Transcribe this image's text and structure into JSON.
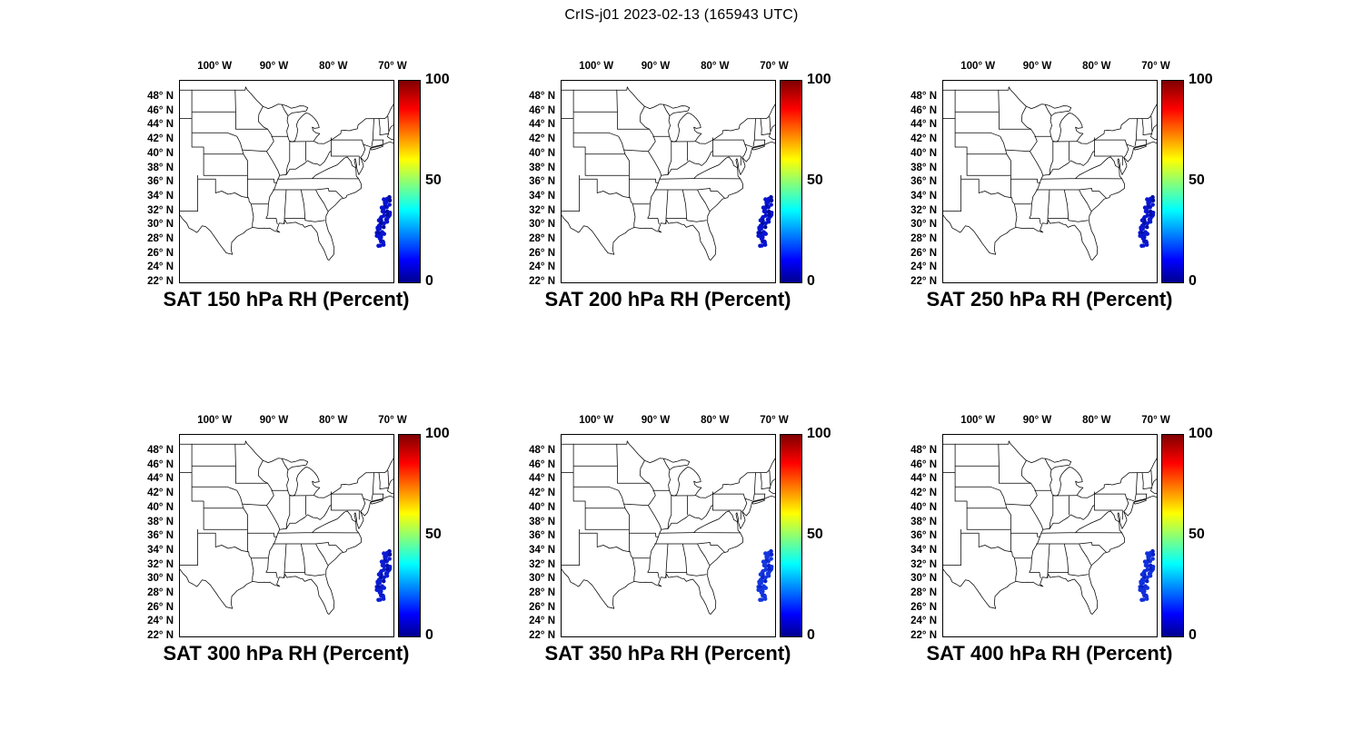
{
  "figure": {
    "title": "CrIS-j01 2023-02-13 (165943 UTC)",
    "background_color": "#ffffff"
  },
  "axes": {
    "lon_ticks": [
      "100° W",
      "90° W",
      "80° W",
      "70° W"
    ],
    "lat_ticks": [
      "48° N",
      "46° N",
      "44° N",
      "42° N",
      "40° N",
      "38° N",
      "36° N",
      "34° N",
      "32° N",
      "30° N",
      "28° N",
      "26° N",
      "24° N",
      "22° N"
    ]
  },
  "colorbar": {
    "ticks": [
      "100",
      "50",
      "0"
    ],
    "min": 0,
    "max": 100,
    "colormap": "jet"
  },
  "panels": [
    {
      "title": "SAT 150 hPa RH (Percent)",
      "pressure_hpa": 150,
      "swath_color": "#0713cf",
      "swath_color_alt": "#000d9e"
    },
    {
      "title": "SAT 200 hPa RH (Percent)",
      "pressure_hpa": 200,
      "swath_color": "#0713cf",
      "swath_color_alt": "#000d9e"
    },
    {
      "title": "SAT 250 hPa RH (Percent)",
      "pressure_hpa": 250,
      "swath_color": "#0a16d0",
      "swath_color_alt": "#000fa6"
    },
    {
      "title": "SAT 300 hPa RH (Percent)",
      "pressure_hpa": 300,
      "swath_color": "#0a1cd4",
      "swath_color_alt": "#0010a8"
    },
    {
      "title": "SAT 350 hPa RH (Percent)",
      "pressure_hpa": 350,
      "swath_color": "#1436e0",
      "swath_color_alt": "#0a23cc"
    },
    {
      "title": "SAT 400 hPa RH (Percent)",
      "pressure_hpa": 400,
      "swath_color": "#1130dc",
      "swath_color_alt": "#081fc6"
    }
  ],
  "chart_data": {
    "type": "scatter",
    "figure_title": "CrIS-j01 2023-02-13 (165943 UTC)",
    "description": "Six-panel map figure of satellite (CrIS-j01) retrieved relative humidity over the central/eastern United States; each panel shows the same observation swath off the US southeast Atlantic coast colored by RH at one pressure level.",
    "map_extent": {
      "lon_deg_w": [
        106,
        70
      ],
      "lat_deg_n": [
        22,
        50.3
      ],
      "features": "US state boundaries"
    },
    "lon_ticks_deg_w": [
      100,
      90,
      80,
      70
    ],
    "lat_ticks_deg_n": [
      48,
      46,
      44,
      42,
      40,
      38,
      36,
      34,
      32,
      30,
      28,
      26,
      24,
      22
    ],
    "colorbar": {
      "label": "RH (Percent)",
      "range": [
        0,
        100
      ],
      "ticks": [
        0,
        50,
        100
      ],
      "colormap": "jet",
      "position": "right"
    },
    "subplots": [
      {
        "title": "SAT 150 hPa RH (Percent)",
        "pressure_hpa": 150,
        "swath": {
          "lon_deg_w": [
            73.3,
            71.0
          ],
          "lat_deg_n": [
            27.3,
            34.0
          ],
          "approx_rh_percent": [
            0,
            12
          ]
        }
      },
      {
        "title": "SAT 200 hPa RH (Percent)",
        "pressure_hpa": 200,
        "swath": {
          "lon_deg_w": [
            73.3,
            71.0
          ],
          "lat_deg_n": [
            27.3,
            34.0
          ],
          "approx_rh_percent": [
            0,
            12
          ]
        }
      },
      {
        "title": "SAT 250 hPa RH (Percent)",
        "pressure_hpa": 250,
        "swath": {
          "lon_deg_w": [
            73.3,
            71.0
          ],
          "lat_deg_n": [
            27.3,
            34.0
          ],
          "approx_rh_percent": [
            0,
            12
          ]
        }
      },
      {
        "title": "SAT 300 hPa RH (Percent)",
        "pressure_hpa": 300,
        "swath": {
          "lon_deg_w": [
            73.3,
            71.0
          ],
          "lat_deg_n": [
            27.3,
            34.0
          ],
          "approx_rh_percent": [
            0,
            15
          ]
        }
      },
      {
        "title": "SAT 350 hPa RH (Percent)",
        "pressure_hpa": 350,
        "swath": {
          "lon_deg_w": [
            73.3,
            71.0
          ],
          "lat_deg_n": [
            27.3,
            34.0
          ],
          "approx_rh_percent": [
            5,
            20
          ]
        }
      },
      {
        "title": "SAT 400 hPa RH (Percent)",
        "pressure_hpa": 400,
        "swath": {
          "lon_deg_w": [
            73.3,
            71.0
          ],
          "lat_deg_n": [
            27.3,
            34.0
          ],
          "approx_rh_percent": [
            5,
            20
          ]
        }
      }
    ],
    "layout": {
      "rows": 2,
      "cols": 3,
      "grid": true
    }
  }
}
